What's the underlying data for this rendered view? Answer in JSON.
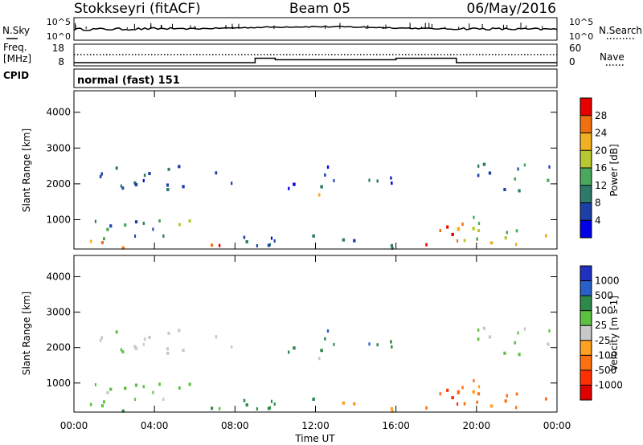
{
  "header": {
    "station": "Stokkseyri (fitACF)",
    "beam": "Beam 05",
    "date": "06/May/2016"
  },
  "top_panel": {
    "left_label": "N.Sky",
    "right_label": "N.Search",
    "left_ticks": [
      "10^5",
      "10^0"
    ],
    "right_ticks": [
      "10^5",
      "10^0"
    ]
  },
  "freq_panel": {
    "left_label_1": "Freq.",
    "left_label_2": "[MHz]",
    "right_label": "Nave",
    "left_ticks": [
      "18",
      "8"
    ],
    "right_ticks": [
      "60",
      "0"
    ]
  },
  "cpid": {
    "label": "CPID",
    "value": "normal (fast) 151"
  },
  "x_axis": {
    "label": "Time UT",
    "ticks": [
      "00:00",
      "04:00",
      "08:00",
      "12:00",
      "16:00",
      "20:00",
      "00:00"
    ]
  },
  "power_panel": {
    "ylabel": "Slant Range [km]",
    "yticks": [
      "4000",
      "3000",
      "2000",
      "1000"
    ],
    "colorbar_label": "Power [dB]",
    "colorbar_ticks": [
      "28",
      "24",
      "20",
      "16",
      "12",
      "8",
      "4"
    ],
    "colors": [
      "#0000e8",
      "#1c3fa8",
      "#2e7a6a",
      "#4aa85c",
      "#b8c832",
      "#f0b020",
      "#f07010",
      "#e80000"
    ]
  },
  "velocity_panel": {
    "ylabel": "Slant Range [km]",
    "yticks": [
      "4000",
      "3000",
      "2000",
      "1000"
    ],
    "colorbar_label": "Velocity [m s-1]",
    "colorbar_ticks": [
      "1000",
      "500",
      "100",
      "25",
      "-25",
      "-100",
      "-500",
      "-1000"
    ],
    "colors": [
      "#2030c0",
      "#2860c8",
      "#2e8a4a",
      "#5cc040",
      "#c8c8c8",
      "#ffa020",
      "#ff7010",
      "#ff3000",
      "#e00000"
    ]
  },
  "chart_data": {
    "type": "heatmap",
    "title": "Stokkseyri (fitACF) Beam 05 06/May/2016",
    "xlabel": "Time UT",
    "ylabel": "Slant Range [km]",
    "x_range_hours": [
      0,
      24
    ],
    "y_range_km": [
      180,
      4600
    ],
    "frequency_mhz_steps": [
      {
        "start": 0,
        "end": 9.0,
        "value": 9.5
      },
      {
        "start": 9.0,
        "end": 10.0,
        "value": 11.5
      },
      {
        "start": 10.0,
        "end": 16.0,
        "value": 10.8
      },
      {
        "start": 16.0,
        "end": 19.0,
        "value": 11.5
      },
      {
        "start": 19.0,
        "end": 24.0,
        "value": 9.5
      }
    ],
    "echo_regions": [
      {
        "t0": 0.0,
        "t1": 8.5,
        "r0": 200,
        "r1": 420,
        "power": 26,
        "velocity": 120
      },
      {
        "t0": 0.0,
        "t1": 7.5,
        "r0": 420,
        "r1": 1000,
        "power": 12,
        "velocity": 60
      },
      {
        "t0": 5.6,
        "t1": 7.2,
        "r0": 800,
        "r1": 950,
        "power": 20,
        "velocity": 15
      },
      {
        "t0": 0.0,
        "t1": 8.0,
        "r0": 1800,
        "r1": 2500,
        "power": 8,
        "velocity": 10
      },
      {
        "t0": 8.0,
        "t1": 12.0,
        "r0": 250,
        "r1": 900,
        "power": 6,
        "velocity": 300
      },
      {
        "t0": 10.0,
        "t1": 13.0,
        "r0": 1550,
        "r1": 1700,
        "power": 22,
        "velocity": 10
      },
      {
        "t0": 10.0,
        "t1": 13.0,
        "r0": 1800,
        "r1": 2500,
        "power": 5,
        "velocity": 500
      },
      {
        "t0": 13.0,
        "t1": 16.0,
        "r0": 1700,
        "r1": 2200,
        "power": 6,
        "velocity": 400
      },
      {
        "t0": 12.5,
        "t1": 16.0,
        "r0": 200,
        "r1": 600,
        "power": 8,
        "velocity": -60
      },
      {
        "t0": 16.0,
        "t1": 19.5,
        "r0": 250,
        "r1": 900,
        "power": 27,
        "velocity": -400
      },
      {
        "t0": 19.0,
        "t1": 24.0,
        "r0": 250,
        "r1": 1100,
        "power": 18,
        "velocity": -150
      },
      {
        "t0": 20.0,
        "t1": 24.0,
        "r0": 1800,
        "r1": 2700,
        "power": 10,
        "velocity": 15
      }
    ]
  }
}
